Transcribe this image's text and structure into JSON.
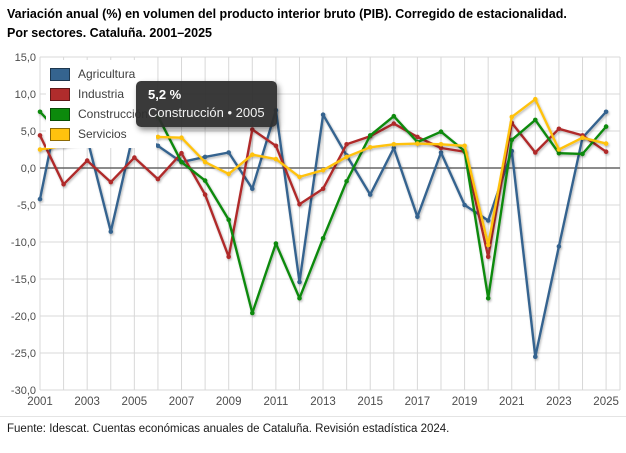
{
  "title": {
    "line1": "Variación anual (%) en volumen del producto interior bruto (PIB). Corregido de estacionalidad.",
    "line2": "Por sectores. Cataluña. 2001–2025"
  },
  "tooltip": {
    "value": "5,2 %",
    "label": "Construcción • 2005"
  },
  "footer": "Fuente: Idescat. Cuentas económicas anuales de Cataluña. Revisión estadística 2024.",
  "axes": {
    "y_ticks": [
      "15,0",
      "10,0",
      "5,0",
      "0,0",
      "-5,0",
      "-10,0",
      "-15,0",
      "-20,0",
      "-25,0",
      "-30,0"
    ],
    "x_ticks": [
      "2001",
      "2003",
      "2005",
      "2007",
      "2009",
      "2011",
      "2013",
      "2015",
      "2017",
      "2019",
      "2021",
      "2023",
      "2025"
    ]
  },
  "chart_data": {
    "type": "line",
    "title": "Variación anual (%) en volumen del PIB. Por sectores. Cataluña. 2001–2025",
    "xlabel": "",
    "ylabel": "",
    "x": [
      2001,
      2002,
      2003,
      2004,
      2005,
      2006,
      2007,
      2008,
      2009,
      2010,
      2011,
      2012,
      2013,
      2014,
      2015,
      2016,
      2017,
      2018,
      2019,
      2020,
      2021,
      2022,
      2023,
      2024,
      2025
    ],
    "ylim": [
      -30,
      15
    ],
    "y_tick_step": 5,
    "grid": true,
    "legend_position": "top-left",
    "series": [
      {
        "name": "Agricultura",
        "color": "#35648F",
        "values": [
          -4.2,
          11.5,
          4.0,
          -8.6,
          5.3,
          3.0,
          0.8,
          1.5,
          2.1,
          -2.8,
          7.8,
          -15.4,
          7.2,
          1.7,
          -3.6,
          2.7,
          -6.6,
          2.1,
          -5.0,
          -7.1,
          2.3,
          -25.5,
          -10.6,
          4.1,
          7.6
        ]
      },
      {
        "name": "Industria",
        "color": "#B02C2C",
        "values": [
          4.4,
          -2.2,
          1.0,
          -1.9,
          1.4,
          -1.5,
          2.0,
          -3.6,
          -12.0,
          5.2,
          3.0,
          -4.9,
          -2.8,
          3.2,
          4.3,
          6.0,
          4.2,
          2.7,
          2.2,
          -12.0,
          6.1,
          2.1,
          5.3,
          4.4,
          2.2
        ]
      },
      {
        "name": "Construcción",
        "color": "#0C8A0C",
        "values": [
          7.6,
          4.2,
          3.7,
          4.1,
          5.2,
          7.0,
          0.8,
          -1.7,
          -7.0,
          -19.6,
          -10.2,
          -17.6,
          -9.5,
          -1.8,
          4.4,
          7.0,
          3.5,
          4.9,
          2.3,
          -17.6,
          3.8,
          6.5,
          2.0,
          1.9,
          5.6
        ]
      },
      {
        "name": "Servicios",
        "color": "#FFC20E",
        "values": [
          2.5,
          3.0,
          3.4,
          3.6,
          4.0,
          4.2,
          4.1,
          0.8,
          -0.8,
          1.8,
          1.2,
          -1.2,
          -0.3,
          1.5,
          2.8,
          3.2,
          3.3,
          3.2,
          3.0,
          -10.4,
          6.9,
          9.3,
          2.5,
          4.1,
          3.3
        ]
      }
    ],
    "highlighted_point": {
      "series": "Construcción",
      "x": 2005,
      "y": 5.2
    }
  },
  "colors": {
    "grid": "#d8d8d8",
    "zero_line": "#666666",
    "tick_text": "#4d4d4d",
    "tooltip_bg": "#2f2f2f"
  }
}
